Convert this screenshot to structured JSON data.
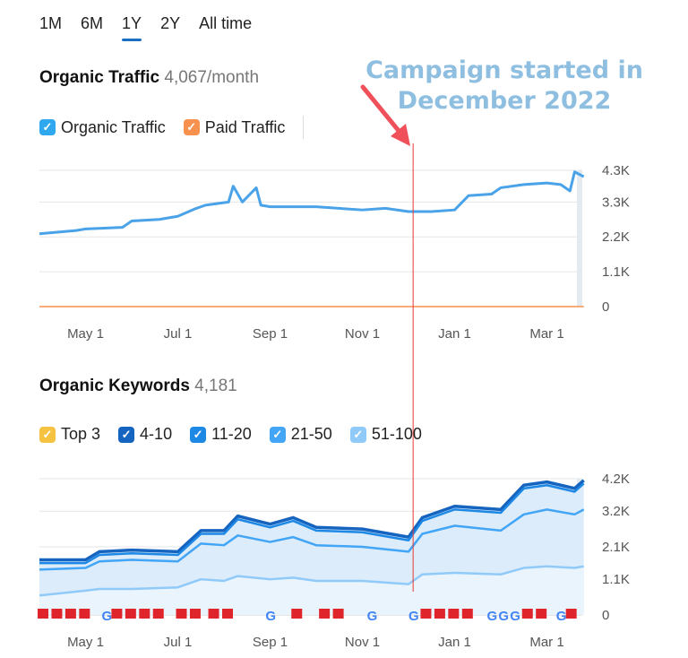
{
  "tabs": [
    {
      "label": "1M"
    },
    {
      "label": "6M"
    },
    {
      "label": "1Y",
      "active": true
    },
    {
      "label": "2Y"
    },
    {
      "label": "All time"
    }
  ],
  "traffic": {
    "title": "Organic Traffic",
    "value": "4,067/month",
    "legend": [
      {
        "label": "Organic Traffic",
        "color": "#2fa8f0"
      },
      {
        "label": "Paid Traffic",
        "color": "#f7914d"
      }
    ]
  },
  "keywords": {
    "title": "Organic Keywords",
    "value": "4,181",
    "legend": [
      {
        "label": "Top 3",
        "color": "#f5c242"
      },
      {
        "label": "4-10",
        "color": "#1565c0"
      },
      {
        "label": "11-20",
        "color": "#1e88e5"
      },
      {
        "label": "21-50",
        "color": "#42a5f5"
      },
      {
        "label": "51-100",
        "color": "#90caf9"
      }
    ]
  },
  "annotation": {
    "line1": "Campaign started in",
    "line2": "December 2022",
    "color": "#8fbfe0",
    "arrow_color": "#f0505a"
  },
  "chart_data": [
    {
      "type": "line",
      "title": "Organic Traffic",
      "x_unit": "months since Apr 1",
      "campaign_start_x": 8.1,
      "xticks": [
        {
          "x": 1,
          "label": "May 1"
        },
        {
          "x": 3,
          "label": "Jul 1"
        },
        {
          "x": 5,
          "label": "Sep 1"
        },
        {
          "x": 7,
          "label": "Nov 1"
        },
        {
          "x": 9,
          "label": "Jan 1"
        },
        {
          "x": 11,
          "label": "Mar 1"
        }
      ],
      "yticks": [
        {
          "v": 0,
          "label": "0"
        },
        {
          "v": 1.1,
          "label": "1.1K"
        },
        {
          "v": 2.2,
          "label": "2.2K"
        },
        {
          "v": 3.3,
          "label": "3.3K"
        },
        {
          "v": 4.3,
          "label": "4.3K"
        }
      ],
      "ylim": [
        0,
        4.3
      ],
      "series": [
        {
          "name": "Organic Traffic",
          "color": "#4aa3e8",
          "x": [
            0,
            0.8,
            1,
            1.8,
            2,
            2.6,
            3,
            3.4,
            3.6,
            4.1,
            4.2,
            4.4,
            4.7,
            4.8,
            5,
            6,
            7,
            7.5,
            8,
            8.5,
            9,
            9.3,
            9.8,
            10,
            10.5,
            11,
            11.3,
            11.5,
            11.6,
            11.8
          ],
          "values": [
            2.3,
            2.4,
            2.45,
            2.5,
            2.7,
            2.75,
            2.85,
            3.1,
            3.2,
            3.3,
            3.8,
            3.3,
            3.75,
            3.2,
            3.15,
            3.15,
            3.05,
            3.1,
            3.0,
            3.0,
            3.05,
            3.5,
            3.55,
            3.75,
            3.85,
            3.9,
            3.85,
            3.65,
            4.25,
            4.1
          ]
        },
        {
          "name": "Paid Traffic",
          "color": "#f7914d",
          "x": [
            0,
            11.8
          ],
          "values": [
            0,
            0
          ]
        }
      ]
    },
    {
      "type": "area",
      "title": "Organic Keywords",
      "x_unit": "months since Apr 1",
      "campaign_start_x": 8.1,
      "xticks": [
        {
          "x": 1,
          "label": "May 1"
        },
        {
          "x": 3,
          "label": "Jul 1"
        },
        {
          "x": 5,
          "label": "Sep 1"
        },
        {
          "x": 7,
          "label": "Nov 1"
        },
        {
          "x": 9,
          "label": "Jan 1"
        },
        {
          "x": 11,
          "label": "Mar 1"
        }
      ],
      "yticks": [
        {
          "v": 0,
          "label": "0"
        },
        {
          "v": 1.1,
          "label": "1.1K"
        },
        {
          "v": 2.1,
          "label": "2.1K"
        },
        {
          "v": 3.2,
          "label": "3.2K"
        },
        {
          "v": 4.2,
          "label": "4.2K"
        }
      ],
      "ylim": [
        0,
        4.2
      ],
      "x": [
        0,
        1,
        1.3,
        2,
        3,
        3.5,
        4,
        4.3,
        5,
        5.5,
        6,
        7,
        8,
        8.3,
        9,
        10,
        10.5,
        11,
        11.6,
        11.8
      ],
      "series": [
        {
          "name": "4-10",
          "color": "#1565c0",
          "values": [
            1.7,
            1.7,
            1.95,
            2.0,
            1.95,
            2.6,
            2.6,
            3.05,
            2.8,
            3.0,
            2.7,
            2.65,
            2.4,
            3.0,
            3.35,
            3.25,
            4.0,
            4.1,
            3.9,
            4.15
          ]
        },
        {
          "name": "11-20",
          "color": "#1e88e5",
          "values": [
            1.6,
            1.6,
            1.85,
            1.9,
            1.85,
            2.5,
            2.5,
            2.95,
            2.7,
            2.9,
            2.6,
            2.55,
            2.3,
            2.9,
            3.25,
            3.15,
            3.9,
            4.0,
            3.8,
            4.05
          ]
        },
        {
          "name": "21-50",
          "color": "#42a5f5",
          "values": [
            1.4,
            1.45,
            1.65,
            1.7,
            1.65,
            2.2,
            2.15,
            2.45,
            2.25,
            2.4,
            2.15,
            2.1,
            1.95,
            2.5,
            2.75,
            2.6,
            3.1,
            3.25,
            3.1,
            3.25
          ]
        },
        {
          "name": "51-100",
          "color": "#90caf9",
          "values": [
            0.6,
            0.75,
            0.8,
            0.8,
            0.85,
            1.1,
            1.05,
            1.2,
            1.1,
            1.15,
            1.05,
            1.05,
            0.95,
            1.25,
            1.3,
            1.25,
            1.45,
            1.5,
            1.45,
            1.5
          ]
        }
      ],
      "markers": [
        {
          "x": 0,
          "t": "flag"
        },
        {
          "x": 0.3,
          "t": "flag"
        },
        {
          "x": 0.6,
          "t": "flag"
        },
        {
          "x": 0.9,
          "t": "flag"
        },
        {
          "x": 1.35,
          "t": "g"
        },
        {
          "x": 1.6,
          "t": "flag"
        },
        {
          "x": 1.9,
          "t": "flag"
        },
        {
          "x": 2.2,
          "t": "flag"
        },
        {
          "x": 2.5,
          "t": "flag"
        },
        {
          "x": 3.0,
          "t": "flag"
        },
        {
          "x": 3.3,
          "t": "flag"
        },
        {
          "x": 3.7,
          "t": "flag"
        },
        {
          "x": 4.0,
          "t": "flag"
        },
        {
          "x": 4.9,
          "t": "g"
        },
        {
          "x": 5.5,
          "t": "flag"
        },
        {
          "x": 6.1,
          "t": "flag"
        },
        {
          "x": 6.4,
          "t": "flag"
        },
        {
          "x": 7.1,
          "t": "g"
        },
        {
          "x": 8.0,
          "t": "g"
        },
        {
          "x": 8.3,
          "t": "flag"
        },
        {
          "x": 8.6,
          "t": "flag"
        },
        {
          "x": 8.9,
          "t": "flag"
        },
        {
          "x": 9.2,
          "t": "flag"
        },
        {
          "x": 9.7,
          "t": "g"
        },
        {
          "x": 9.95,
          "t": "g"
        },
        {
          "x": 10.2,
          "t": "g"
        },
        {
          "x": 10.5,
          "t": "flag"
        },
        {
          "x": 10.8,
          "t": "flag"
        },
        {
          "x": 11.2,
          "t": "g"
        },
        {
          "x": 11.45,
          "t": "flag"
        }
      ]
    }
  ]
}
